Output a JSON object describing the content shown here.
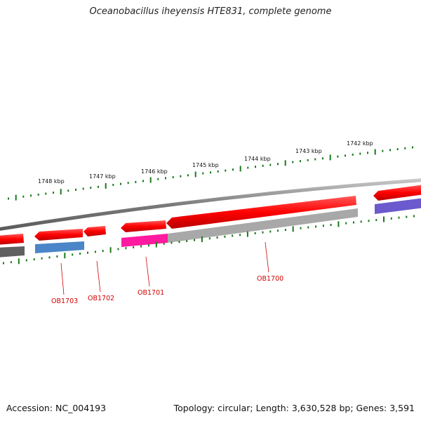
{
  "title": "Oceanobacillus iheyensis HTE831, complete genome",
  "footer": {
    "accession": "Accession: NC_004193",
    "summary": "Topology: circular; Length: 3,630,528 bp; Genes: 3,591"
  },
  "kbp_labels": [
    "1748 kbp",
    "1747 kbp",
    "1746 kbp",
    "1745 kbp",
    "1744 kbp",
    "1743 kbp",
    "1742 kbp"
  ],
  "gene_labels": [
    "OB1703",
    "OB1702",
    "OB1701",
    "OB1700"
  ],
  "colors": {
    "cds": "#ff0000",
    "backbone": "#808080",
    "ticks": "#1a7a1a",
    "label": "#d40000",
    "blue": "#4a86c8",
    "magenta": "#ff1aa0",
    "gray": "#a8a8a8",
    "dark": "#606060",
    "purple": "#6a5acd"
  }
}
